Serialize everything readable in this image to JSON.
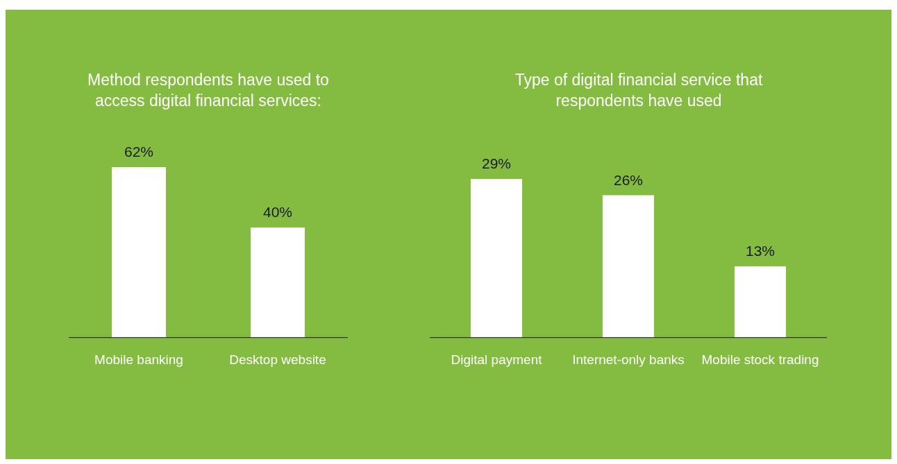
{
  "chart_data": [
    {
      "type": "bar",
      "title": "Method respondents have used to access digital financial services:",
      "categories": [
        "Mobile banking",
        "Desktop website"
      ],
      "values": [
        62,
        40
      ],
      "color": "#ffffff",
      "value_labels": [
        "62%",
        "40%"
      ]
    },
    {
      "type": "bar",
      "title": "Type of digital financial service that respondents have used",
      "categories": [
        "Digital payment",
        "Internet-only banks",
        "Mobile stock trading"
      ],
      "values": [
        29,
        26,
        13
      ],
      "color": "#ffffff",
      "value_labels": [
        "29%",
        "26%",
        "13%"
      ]
    }
  ]
}
